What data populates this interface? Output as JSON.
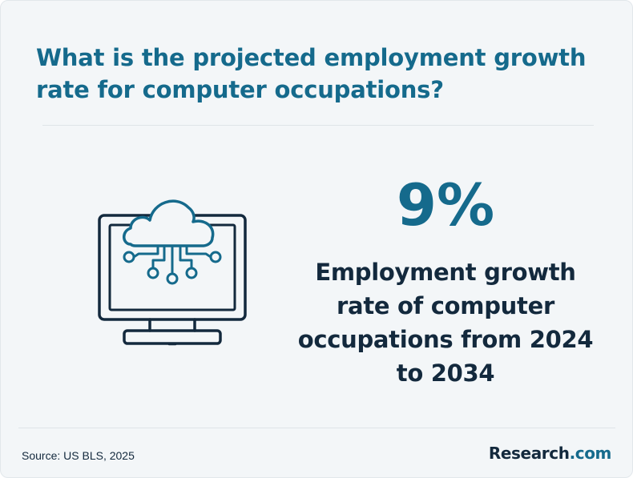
{
  "header": {
    "title": "What is the projected employment growth rate for computer occupations?"
  },
  "icon": {
    "name": "cloud-computer-icon",
    "stroke_color": "#156a8c",
    "outline_color": "#13293d"
  },
  "stat": {
    "value": "9%",
    "description": "Employment growth rate of computer occupations from 2024 to 2034"
  },
  "footer": {
    "source": "Source: US BLS, 2025",
    "brand_name": "Research",
    "brand_suffix": ".com"
  },
  "colors": {
    "accent": "#156a8c",
    "text_dark": "#13293d",
    "background": "#f3f6f8"
  }
}
